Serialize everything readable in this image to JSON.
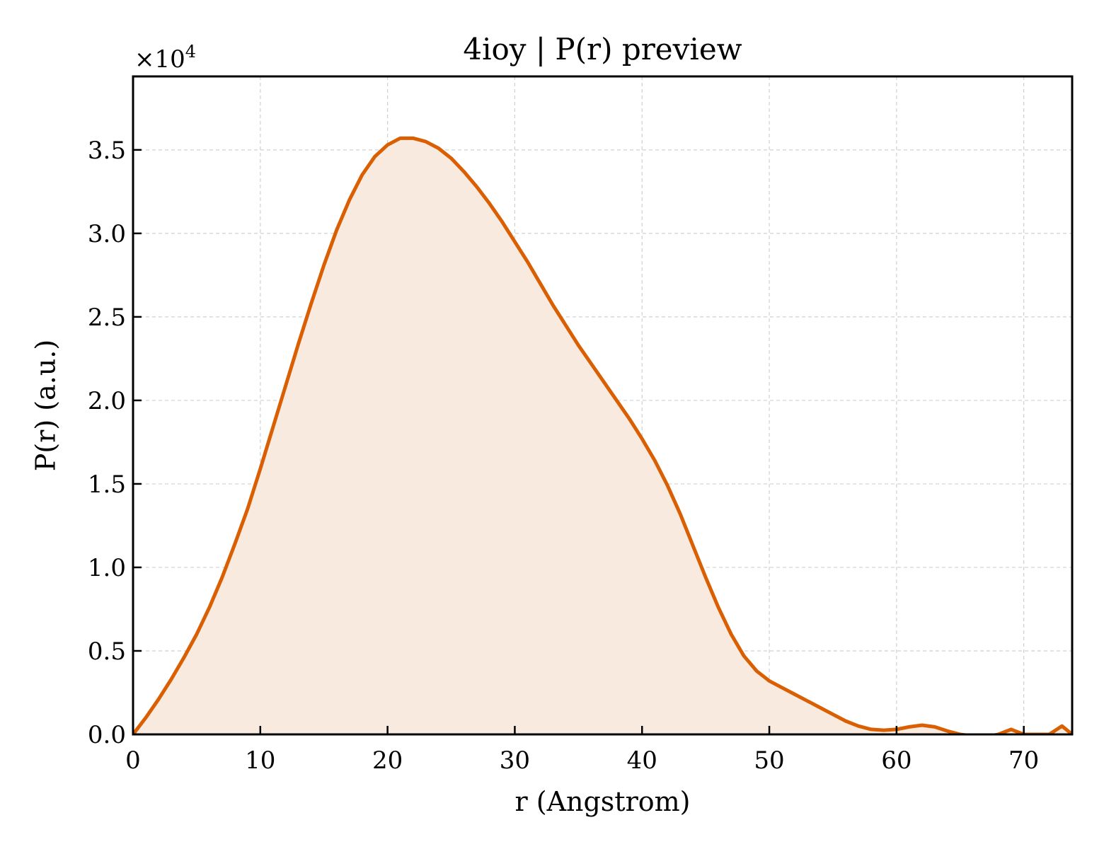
{
  "chart_data": {
    "type": "area",
    "title": "4ioy | P(r) preview",
    "xlabel": "r (Angstrom)",
    "ylabel": "P(r) (a.u.)",
    "y_multiplier_label": "×10",
    "y_multiplier_exponent": "4",
    "xlim": [
      0,
      73.8
    ],
    "ylim": [
      0,
      39400
    ],
    "grid": true,
    "x_ticks": [
      0,
      10,
      20,
      30,
      40,
      50,
      60,
      70
    ],
    "x_tick_labels": [
      "0",
      "10",
      "20",
      "30",
      "40",
      "50",
      "60",
      "70"
    ],
    "y_ticks": [
      0,
      5000,
      10000,
      15000,
      20000,
      25000,
      30000,
      35000
    ],
    "y_tick_labels": [
      "0.0",
      "0.5",
      "1.0",
      "1.5",
      "2.0",
      "2.5",
      "3.0",
      "3.5"
    ],
    "colors": {
      "line": "#d95f02",
      "fill": "#f8eadf",
      "grid": "#d0d0d0"
    },
    "series": [
      {
        "x": [
          0,
          1,
          2,
          3,
          4,
          5,
          6,
          7,
          8,
          9,
          10,
          11,
          12,
          13,
          14,
          15,
          16,
          17,
          18,
          19,
          20,
          21,
          22,
          23,
          24,
          25,
          26,
          27,
          28,
          29,
          30,
          31,
          32,
          33,
          34,
          35,
          36,
          37,
          38,
          39,
          40,
          41,
          42,
          43,
          44,
          45,
          46,
          47,
          48,
          49,
          50,
          51,
          52,
          53,
          54,
          55,
          56,
          57,
          58,
          59,
          60,
          61,
          62,
          63,
          64,
          65,
          66,
          67,
          68,
          69,
          70,
          71,
          72,
          73,
          73.8
        ],
        "y": [
          0,
          1000,
          2100,
          3300,
          4600,
          6000,
          7600,
          9400,
          11400,
          13500,
          15900,
          18400,
          20900,
          23400,
          25800,
          28100,
          30200,
          32000,
          33500,
          34600,
          35300,
          35700,
          35700,
          35500,
          35100,
          34500,
          33700,
          32800,
          31800,
          30700,
          29500,
          28300,
          27000,
          25700,
          24500,
          23300,
          22200,
          21100,
          20000,
          18900,
          17700,
          16400,
          14900,
          13200,
          11300,
          9400,
          7600,
          6000,
          4700,
          3800,
          3200,
          2800,
          2400,
          2000,
          1600,
          1200,
          800,
          500,
          300,
          250,
          300,
          450,
          550,
          450,
          200,
          0,
          -100,
          -150,
          0,
          300,
          0,
          0,
          0,
          500,
          0
        ]
      }
    ]
  }
}
